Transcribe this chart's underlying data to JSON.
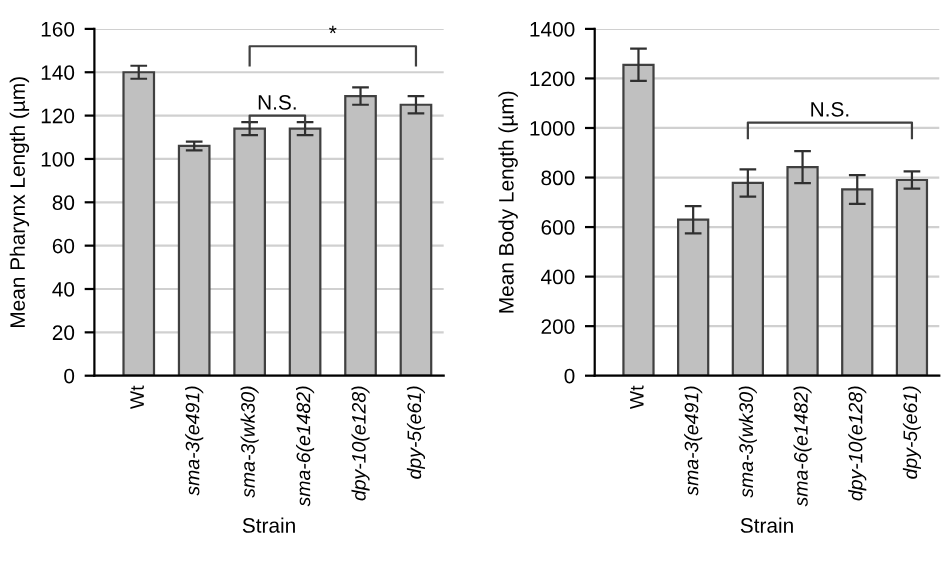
{
  "chart_data": [
    {
      "type": "bar",
      "xlabel": "Strain",
      "ylabel": "Mean Pharynx Length (µm)",
      "categories": [
        "Wt",
        "sma-3(e491)",
        "sma-3(wk30)",
        "sma-6(e1482)",
        "dpy-10(e128)",
        "dpy-5(e61)"
      ],
      "values": [
        140,
        106,
        114,
        114,
        129,
        125
      ],
      "errors": [
        3,
        2,
        3,
        3,
        4,
        4
      ],
      "color": "#c0c0c0",
      "ylim": [
        0,
        160
      ],
      "yticks": [
        0,
        20,
        40,
        60,
        80,
        100,
        120,
        140,
        160
      ],
      "grid": "y",
      "annotations": [
        "N.S.",
        "*"
      ]
    },
    {
      "type": "bar",
      "xlabel": "Strain",
      "ylabel": "Mean Body Length (µm)",
      "categories": [
        "Wt",
        "sma-3(e491)",
        "sma-3(wk30)",
        "sma-6(e1482)",
        "dpy-10(e128)",
        "dpy-5(e61)"
      ],
      "values": [
        1255,
        630,
        778,
        842,
        752,
        790
      ],
      "errors": [
        65,
        55,
        55,
        65,
        58,
        35
      ],
      "color": "#c0c0c0",
      "ylim": [
        0,
        1400
      ],
      "yticks": [
        0,
        200,
        400,
        600,
        800,
        1000,
        1200,
        1400
      ],
      "grid": "y",
      "annotations": [
        "N.S."
      ]
    }
  ]
}
